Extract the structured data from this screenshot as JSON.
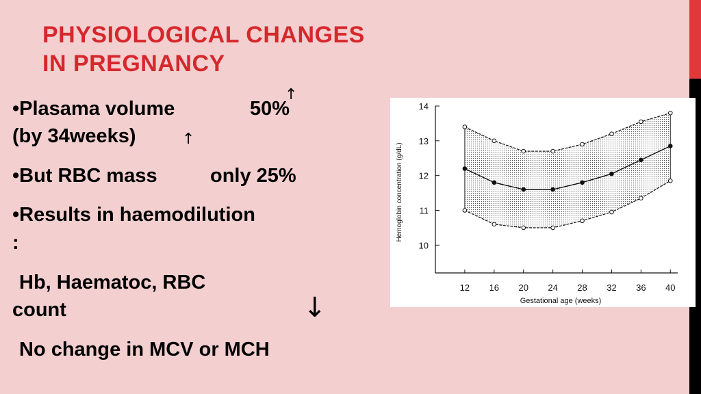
{
  "slide": {
    "title_line1": "PHYSIOLOGICAL CHANGES",
    "title_line2": "IN PREGNANCY",
    "bullet1_a": "•Plasama  volume",
    "bullet1_b": "50%",
    "bullet1_c": "(by 34weeks)",
    "bullet2_a": "•But RBC mass",
    "bullet2_b": "only 25%",
    "bullet3_a": "•Results in  haemodilution",
    "bullet3_b": ":",
    "line4_a": "Hb, Haematoc,  RBC",
    "line4_b": "count",
    "line5": "No change in MCV or MCH",
    "up_arrow": "↑",
    "down_arrow": "↓"
  },
  "colors": {
    "title": "#d6282c",
    "background": "#f3cfd0",
    "accent_bar": "#e2383a"
  },
  "chart_data": {
    "type": "line",
    "xlabel": "Gestational age (weeks)",
    "ylabel": "Hemoglobin concentration (g/dL)",
    "x": [
      12,
      16,
      20,
      24,
      28,
      32,
      36,
      40
    ],
    "xlim": [
      8,
      41
    ],
    "ylim": [
      9.2,
      14
    ],
    "yticks": [
      10,
      11,
      12,
      13,
      14
    ],
    "xticks": [
      12,
      16,
      20,
      24,
      28,
      32,
      36,
      40
    ],
    "grid": false,
    "series": [
      {
        "role": "upper",
        "values": [
          13.4,
          13.0,
          12.7,
          12.7,
          12.9,
          13.2,
          13.55,
          13.8
        ]
      },
      {
        "role": "mean",
        "values": [
          12.2,
          11.8,
          11.6,
          11.6,
          11.8,
          12.05,
          12.45,
          12.85
        ]
      },
      {
        "role": "lower",
        "values": [
          11.0,
          10.6,
          10.5,
          10.5,
          10.7,
          10.95,
          11.35,
          11.85
        ]
      }
    ]
  }
}
